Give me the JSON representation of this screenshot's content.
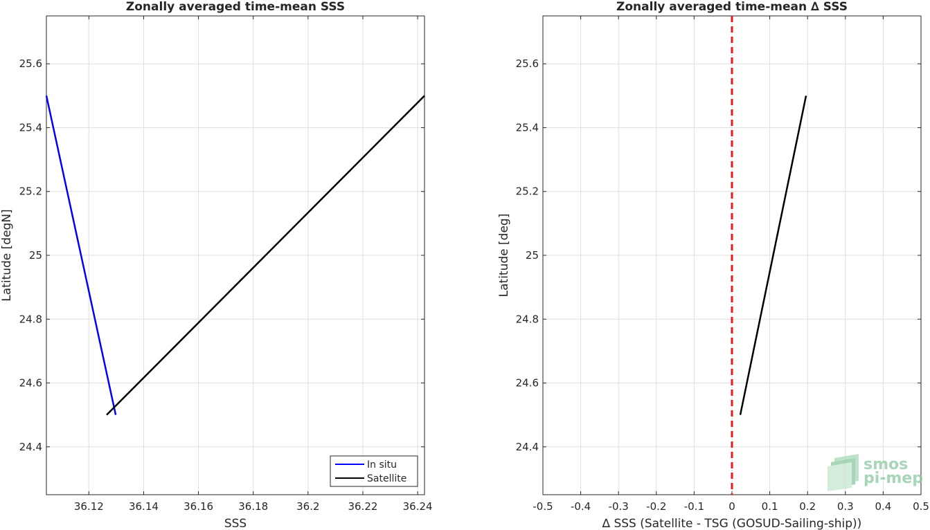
{
  "chart_data": [
    {
      "type": "line",
      "title": "Zonally averaged time-mean SSS",
      "xlabel": "SSS",
      "ylabel": "Latitude [degN]",
      "xlim": [
        36.1045,
        36.2425
      ],
      "ylim": [
        24.25,
        25.75
      ],
      "xticks": [
        36.12,
        36.14,
        36.16,
        36.18,
        36.2,
        36.22,
        36.24
      ],
      "xtick_labels": [
        "36.12",
        "36.14",
        "36.16",
        "36.18",
        "36.2",
        "36.22",
        "36.24"
      ],
      "yticks": [
        24.4,
        24.6,
        24.8,
        25.0,
        25.2,
        25.4,
        25.6
      ],
      "ytick_labels": [
        "24.4",
        "24.6",
        "24.8",
        "25",
        "25.2",
        "25.4",
        "25.6"
      ],
      "grid": true,
      "legend": "bottom-right",
      "series": [
        {
          "name": "In situ",
          "color": "#0000ff",
          "x": [
            36.1045,
            36.1298
          ],
          "y": [
            25.5,
            24.5
          ]
        },
        {
          "name": "Satellite",
          "color": "#000000",
          "x": [
            36.1265,
            36.2425
          ],
          "y": [
            24.5,
            25.5
          ]
        }
      ]
    },
    {
      "type": "line",
      "title": "Zonally averaged time-mean ∆ SSS",
      "xlabel": "∆ SSS (Satellite - TSG (GOSUD-Sailing-ship))",
      "ylabel": "Latitude [deg]",
      "xlim": [
        -0.5,
        0.5
      ],
      "ylim": [
        24.25,
        25.75
      ],
      "xticks": [
        -0.5,
        -0.4,
        -0.3,
        -0.2,
        -0.1,
        0,
        0.1,
        0.2,
        0.3,
        0.4,
        0.5
      ],
      "xtick_labels": [
        "-0.5",
        "-0.4",
        "-0.3",
        "-0.2",
        "-0.1",
        "0",
        "0.1",
        "0.2",
        "0.3",
        "0.4",
        "0.5"
      ],
      "yticks": [
        24.4,
        24.6,
        24.8,
        25.0,
        25.2,
        25.4,
        25.6
      ],
      "ytick_labels": [
        "24.4",
        "24.6",
        "24.8",
        "25",
        "25.2",
        "25.4",
        "25.6"
      ],
      "grid": true,
      "reference_line": {
        "x": 0,
        "color": "#e31a1c",
        "style": "dashed"
      },
      "series": [
        {
          "color": "#000000",
          "x": [
            0.022,
            0.196
          ],
          "y": [
            24.5,
            25.5
          ]
        }
      ]
    }
  ],
  "watermark": {
    "line1": "smos",
    "line2": "pi-mep",
    "color": "#8cc7a0"
  }
}
